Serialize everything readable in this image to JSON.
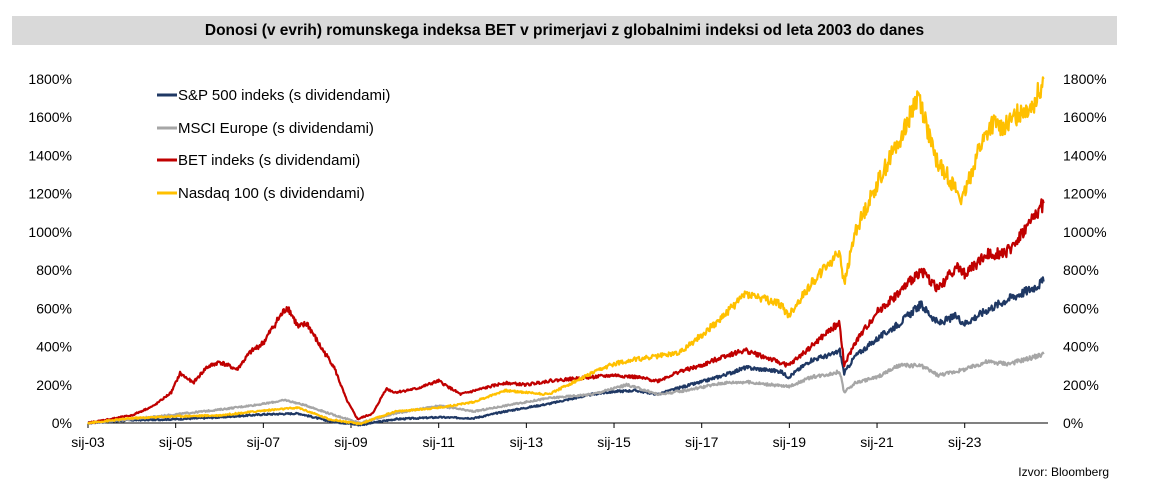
{
  "chart_data": {
    "type": "line",
    "title": "Donosi (v evrih) romunskega indeksa BET v primerjavi z globalnimi indeksi od leta 2003 do danes",
    "source": "Izvor:  Bloomberg",
    "ylim": [
      0,
      1800
    ],
    "yticks": [
      "0%",
      "200%",
      "400%",
      "600%",
      "800%",
      "1000%",
      "1200%",
      "1400%",
      "1600%",
      "1800%"
    ],
    "xlim": [
      2003.0,
      2024.9
    ],
    "xticks": [
      {
        "label": "sij-03",
        "x": 2003
      },
      {
        "label": "sij-05",
        "x": 2005
      },
      {
        "label": "sij-07",
        "x": 2007
      },
      {
        "label": "sij-09",
        "x": 2009
      },
      {
        "label": "sij-11",
        "x": 2011
      },
      {
        "label": "sij-13",
        "x": 2013
      },
      {
        "label": "sij-15",
        "x": 2015
      },
      {
        "label": "sij-17",
        "x": 2017
      },
      {
        "label": "sij-19",
        "x": 2019
      },
      {
        "label": "sij-21",
        "x": 2021
      },
      {
        "label": "sij-23",
        "x": 2023
      }
    ],
    "grid": false,
    "legend_position": "top-left",
    "series": [
      {
        "name": "S&P 500 indeks (s dividendami)",
        "color": "#1f3864",
        "x": [
          2003.0,
          2004.0,
          2005.0,
          2006.0,
          2007.0,
          2007.8,
          2008.5,
          2009.2,
          2010.0,
          2011.0,
          2011.8,
          2012.5,
          2013.5,
          2014.5,
          2015.0,
          2015.5,
          2016.0,
          2016.5,
          2017.0,
          2017.5,
          2018.0,
          2018.8,
          2018.98,
          2019.5,
          2020.0,
          2020.15,
          2020.25,
          2020.5,
          2021.0,
          2021.5,
          2022.0,
          2022.4,
          2022.8,
          2023.0,
          2023.5,
          2024.0,
          2024.5,
          2024.8
        ],
        "y": [
          0,
          15,
          20,
          30,
          45,
          50,
          10,
          -10,
          20,
          30,
          25,
          60,
          100,
          150,
          165,
          170,
          150,
          185,
          215,
          250,
          290,
          270,
          240,
          330,
          360,
          380,
          260,
          350,
          440,
          520,
          620,
          520,
          560,
          520,
          590,
          650,
          700,
          740
        ]
      },
      {
        "name": "MSCI Europe (s dividendami)",
        "color": "#a6a6a6",
        "x": [
          2003.0,
          2004.0,
          2005.0,
          2006.0,
          2007.0,
          2007.5,
          2008.0,
          2008.5,
          2009.2,
          2010.0,
          2011.0,
          2011.8,
          2012.5,
          2013.5,
          2014.5,
          2015.3,
          2016.0,
          2016.5,
          2017.5,
          2018.0,
          2018.98,
          2019.5,
          2020.0,
          2020.15,
          2020.25,
          2020.5,
          2021.0,
          2021.5,
          2022.0,
          2022.4,
          2022.8,
          2023.0,
          2023.5,
          2024.0,
          2024.5,
          2024.8
        ],
        "y": [
          0,
          20,
          45,
          70,
          100,
          120,
          90,
          50,
          0,
          50,
          90,
          60,
          90,
          130,
          150,
          200,
          150,
          165,
          210,
          215,
          190,
          240,
          260,
          270,
          160,
          210,
          240,
          300,
          300,
          250,
          270,
          280,
          320,
          310,
          340,
          360
        ]
      },
      {
        "name": "BET indeks (s dividendami)",
        "color": "#c00000",
        "x": [
          2003.0,
          2003.5,
          2004.0,
          2004.5,
          2004.9,
          2005.1,
          2005.4,
          2005.7,
          2006.0,
          2006.4,
          2006.7,
          2007.0,
          2007.3,
          2007.55,
          2007.8,
          2008.0,
          2008.3,
          2008.6,
          2008.9,
          2009.15,
          2009.5,
          2009.8,
          2010.0,
          2010.5,
          2011.0,
          2011.5,
          2012.0,
          2012.5,
          2013.0,
          2013.5,
          2014.0,
          2014.5,
          2015.0,
          2015.5,
          2016.0,
          2016.5,
          2017.0,
          2017.5,
          2018.0,
          2018.5,
          2018.98,
          2019.5,
          2020.0,
          2020.15,
          2020.25,
          2020.5,
          2021.0,
          2021.5,
          2022.0,
          2022.4,
          2022.8,
          2023.0,
          2023.5,
          2024.0,
          2024.5,
          2024.8
        ],
        "y": [
          0,
          20,
          40,
          90,
          160,
          260,
          210,
          290,
          320,
          280,
          370,
          420,
          530,
          610,
          500,
          520,
          400,
          300,
          120,
          20,
          50,
          180,
          160,
          180,
          220,
          150,
          180,
          210,
          200,
          220,
          230,
          240,
          250,
          240,
          220,
          270,
          300,
          350,
          380,
          340,
          300,
          400,
          500,
          520,
          300,
          420,
          580,
          680,
          800,
          700,
          820,
          780,
          880,
          900,
          1050,
          1150
        ]
      },
      {
        "name": "Nasdaq 100 (s dividendami)",
        "color": "#ffc000",
        "x": [
          2003.0,
          2004.0,
          2005.0,
          2006.0,
          2007.0,
          2007.8,
          2008.5,
          2009.2,
          2010.0,
          2011.0,
          2011.8,
          2012.5,
          2013.5,
          2014.5,
          2015.0,
          2015.4,
          2016.0,
          2016.5,
          2017.0,
          2017.5,
          2018.0,
          2018.8,
          2018.98,
          2019.5,
          2020.0,
          2020.15,
          2020.25,
          2020.5,
          2020.8,
          2021.0,
          2021.5,
          2021.95,
          2022.3,
          2022.6,
          2022.95,
          2023.3,
          2023.6,
          2024.0,
          2024.3,
          2024.6,
          2024.8
        ],
        "y": [
          0,
          25,
          35,
          40,
          65,
          80,
          20,
          -5,
          60,
          80,
          110,
          170,
          150,
          260,
          310,
          330,
          350,
          370,
          460,
          560,
          680,
          620,
          560,
          730,
          860,
          900,
          720,
          1000,
          1150,
          1250,
          1480,
          1720,
          1400,
          1300,
          1160,
          1420,
          1560,
          1560,
          1640,
          1680,
          1800
        ]
      }
    ]
  }
}
